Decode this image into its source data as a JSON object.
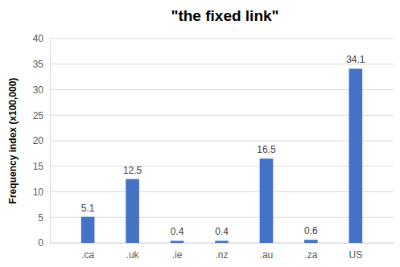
{
  "chart_data": {
    "type": "bar",
    "title": "\"the fixed link\"",
    "y_label": "Frequency index (x100,000)",
    "categories": [
      ".ca",
      ".uk",
      ".ie",
      ".nz",
      ".au",
      ".za",
      "US"
    ],
    "values": [
      5.1,
      12.5,
      0.4,
      0.4,
      16.5,
      0.6,
      34.1
    ],
    "color": "#4472c4",
    "ylim": [
      0,
      40
    ],
    "yticks": [
      0,
      5,
      10,
      15,
      20,
      25,
      30,
      35,
      40
    ],
    "grid": true,
    "data_labels": true
  }
}
